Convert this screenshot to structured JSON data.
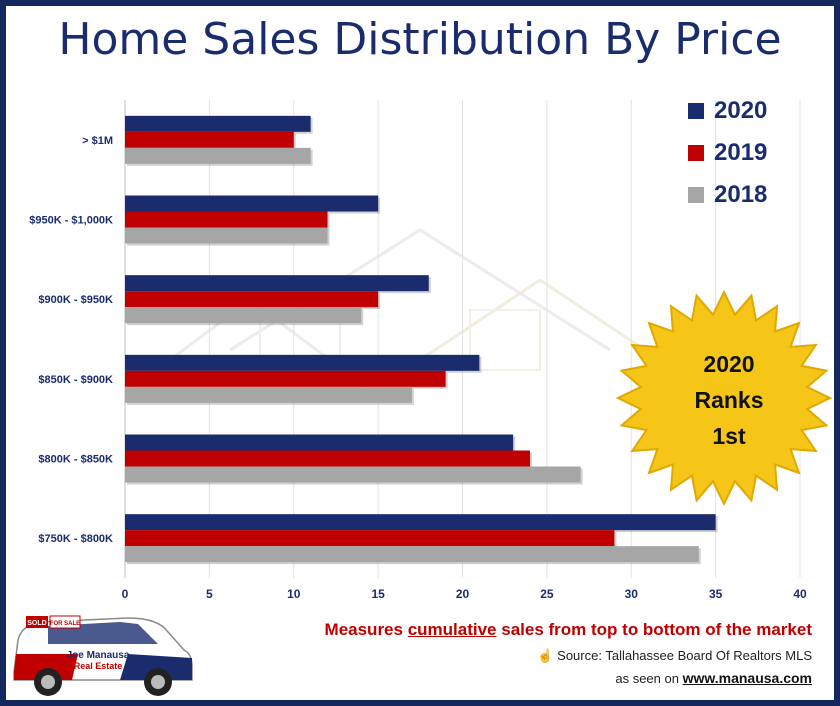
{
  "chart_data": {
    "type": "bar",
    "orientation": "horizontal",
    "title": "Home Sales Distribution By Price",
    "categories": [
      "> $1M",
      "$950K - $1,000K",
      "$900K - $950K",
      "$850K - $900K",
      "$800K - $850K",
      "$750K - $800K"
    ],
    "series": [
      {
        "name": "2020",
        "color": "#1a2c6e",
        "values": [
          11,
          15,
          18,
          21,
          23,
          35
        ]
      },
      {
        "name": "2019",
        "color": "#c00000",
        "values": [
          10,
          12,
          15,
          19,
          24,
          29
        ]
      },
      {
        "name": "2018",
        "color": "#a6a6a6",
        "values": [
          11,
          12,
          14,
          17,
          27,
          34
        ]
      }
    ],
    "x_ticks": [
      "0",
      "5",
      "10",
      "15",
      "20",
      "25",
      "30",
      "35",
      "40"
    ],
    "xlim": [
      0,
      40
    ],
    "grid": true,
    "legend_position": "top-right"
  },
  "badge": {
    "line1": "2020",
    "line2": "Ranks",
    "line3": "1st"
  },
  "footer": {
    "note_before": "Measures ",
    "note_emph": "cumulative",
    "note_after": " sales from top to bottom of the market",
    "source_icon": "hand-pointer-icon",
    "source": "Source: Tallahassee Board Of Realtors MLS",
    "seen_prefix": "as seen on ",
    "seen_site": "www.manausa.com"
  },
  "vehicle": {
    "icon": "car-icon",
    "brand_line1": "Joe Manausa",
    "brand_line2": "Real Estate",
    "sign1": "SOLD",
    "sign2": "FOR SALE"
  }
}
